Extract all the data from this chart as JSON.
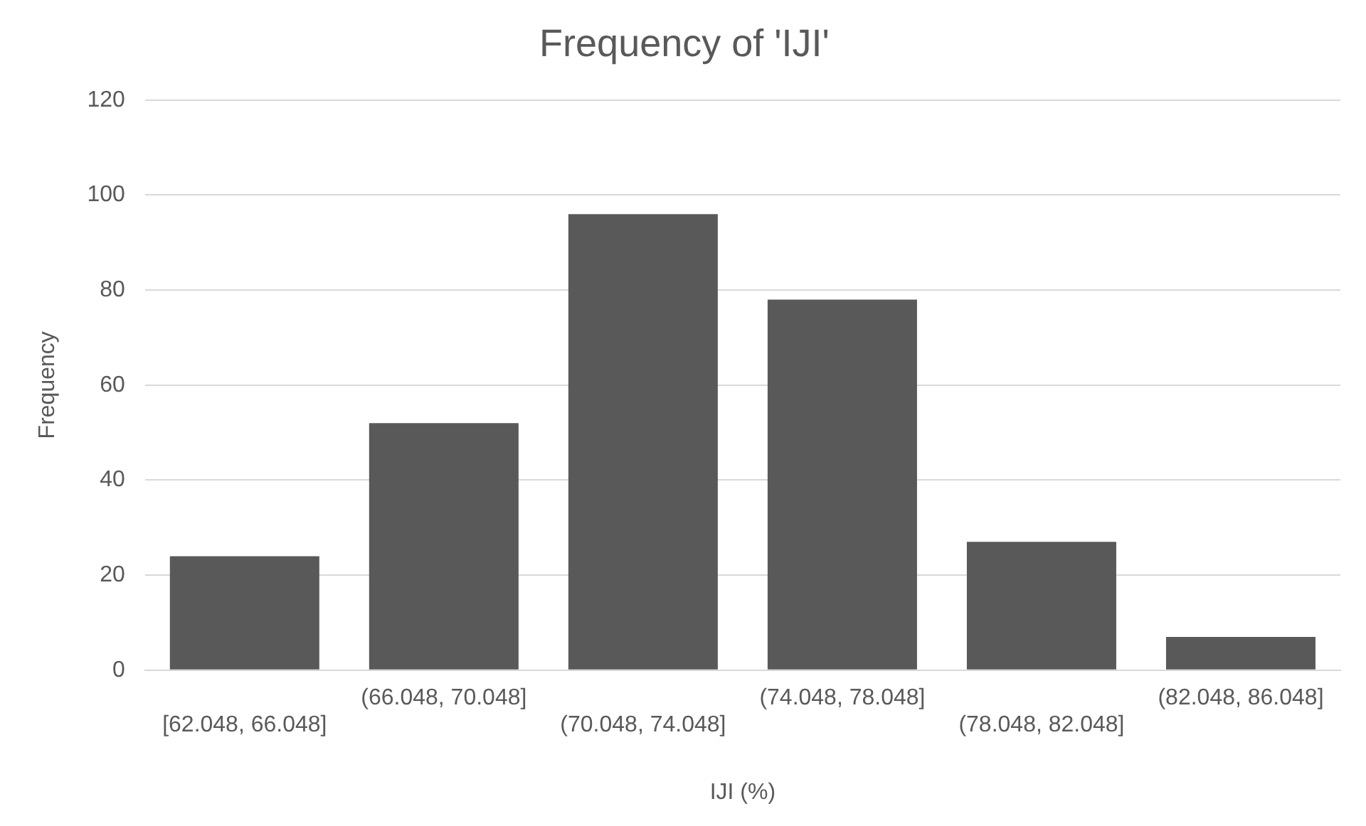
{
  "chart_data": {
    "type": "bar",
    "title": "Frequency of 'IJI'",
    "xlabel": "IJI (%)",
    "ylabel": "Frequency",
    "categories": [
      "[62.048, 66.048]",
      "(66.048, 70.048]",
      "(70.048, 74.048]",
      "(74.048, 78.048]",
      "(78.048, 82.048]",
      "(82.048, 86.048]"
    ],
    "values": [
      24,
      52,
      96,
      78,
      27,
      7
    ],
    "color": "#595959",
    "ylim": [
      0,
      120
    ],
    "yticks": [
      0,
      20,
      40,
      60,
      80,
      100,
      120
    ],
    "grid": "y",
    "legend": false
  }
}
